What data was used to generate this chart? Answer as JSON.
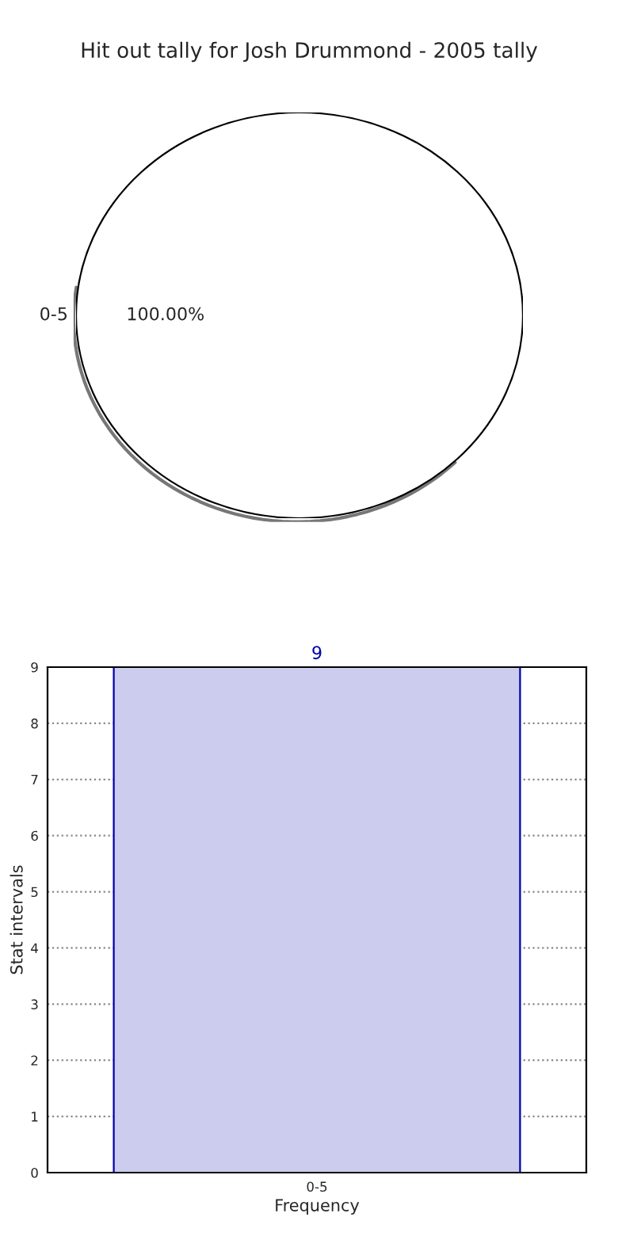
{
  "chart_data": [
    {
      "type": "pie",
      "title": "Hit out tally for Josh Drummond - 2005 tally",
      "categories": [
        "0-5"
      ],
      "values": [
        100
      ],
      "colors": [
        "#ffffff"
      ],
      "value_labels": [
        "100.00%"
      ]
    },
    {
      "type": "bar",
      "categories": [
        "0-5"
      ],
      "values": [
        9
      ],
      "color": "#ccccee",
      "xlabel": "Frequency",
      "ylabel": "Stat intervals",
      "ylim": [
        0,
        9
      ],
      "yticks": [
        0,
        1,
        2,
        3,
        4,
        5,
        6,
        7,
        8,
        9
      ],
      "grid": true,
      "data_labels": true
    }
  ]
}
